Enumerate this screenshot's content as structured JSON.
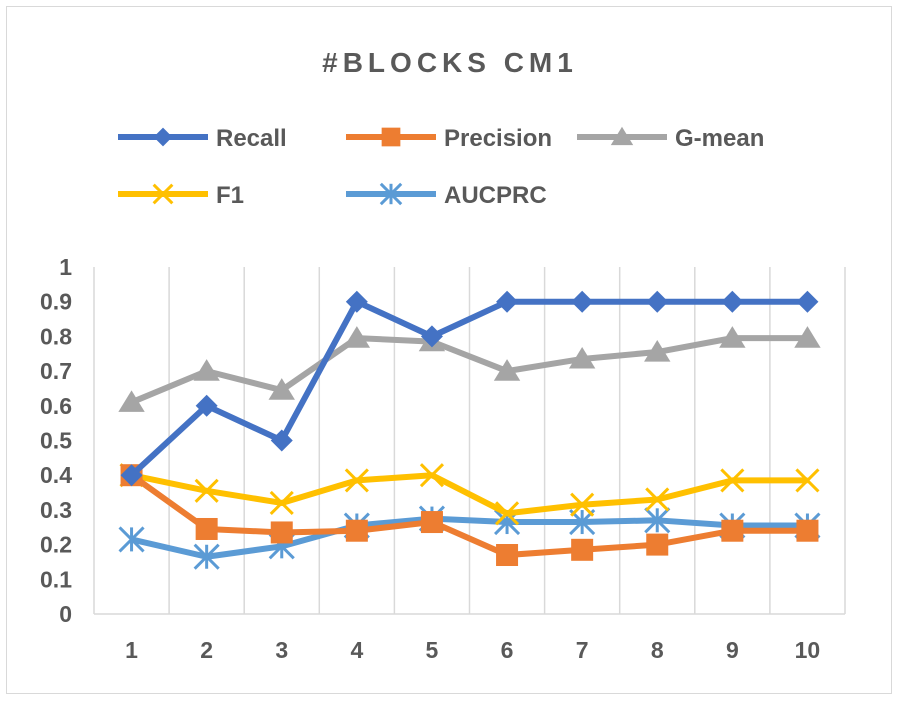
{
  "chart_data": {
    "type": "line",
    "title": "#BLOCKS CM1",
    "xlabel": "",
    "ylabel": "",
    "categories": [
      "1",
      "2",
      "3",
      "4",
      "5",
      "6",
      "7",
      "8",
      "9",
      "10"
    ],
    "ylim": [
      0,
      1
    ],
    "yticks": [
      "0",
      "0.1",
      "0.2",
      "0.3",
      "0.4",
      "0.5",
      "0.6",
      "0.7",
      "0.8",
      "0.9",
      "1"
    ],
    "grid": "vertical",
    "legend_position": "top",
    "series": [
      {
        "name": "Recall",
        "color": "#4472c4",
        "marker": "diamond",
        "values": [
          0.4,
          0.6,
          0.5,
          0.9,
          0.8,
          0.9,
          0.9,
          0.9,
          0.9,
          0.9
        ]
      },
      {
        "name": "Precision",
        "color": "#ed7d31",
        "marker": "square",
        "values": [
          0.4,
          0.245,
          0.235,
          0.24,
          0.265,
          0.17,
          0.185,
          0.2,
          0.24,
          0.24
        ]
      },
      {
        "name": "G-mean",
        "color": "#a5a5a5",
        "marker": "triangle",
        "values": [
          0.61,
          0.7,
          0.645,
          0.795,
          0.785,
          0.7,
          0.735,
          0.755,
          0.795,
          0.795
        ]
      },
      {
        "name": "F1",
        "color": "#ffc000",
        "marker": "x",
        "values": [
          0.4,
          0.355,
          0.32,
          0.385,
          0.4,
          0.29,
          0.315,
          0.33,
          0.385,
          0.385
        ]
      },
      {
        "name": "AUCPRC",
        "color": "#5b9bd5",
        "marker": "star",
        "values": [
          0.215,
          0.165,
          0.195,
          0.255,
          0.275,
          0.265,
          0.265,
          0.27,
          0.255,
          0.255
        ]
      }
    ]
  }
}
